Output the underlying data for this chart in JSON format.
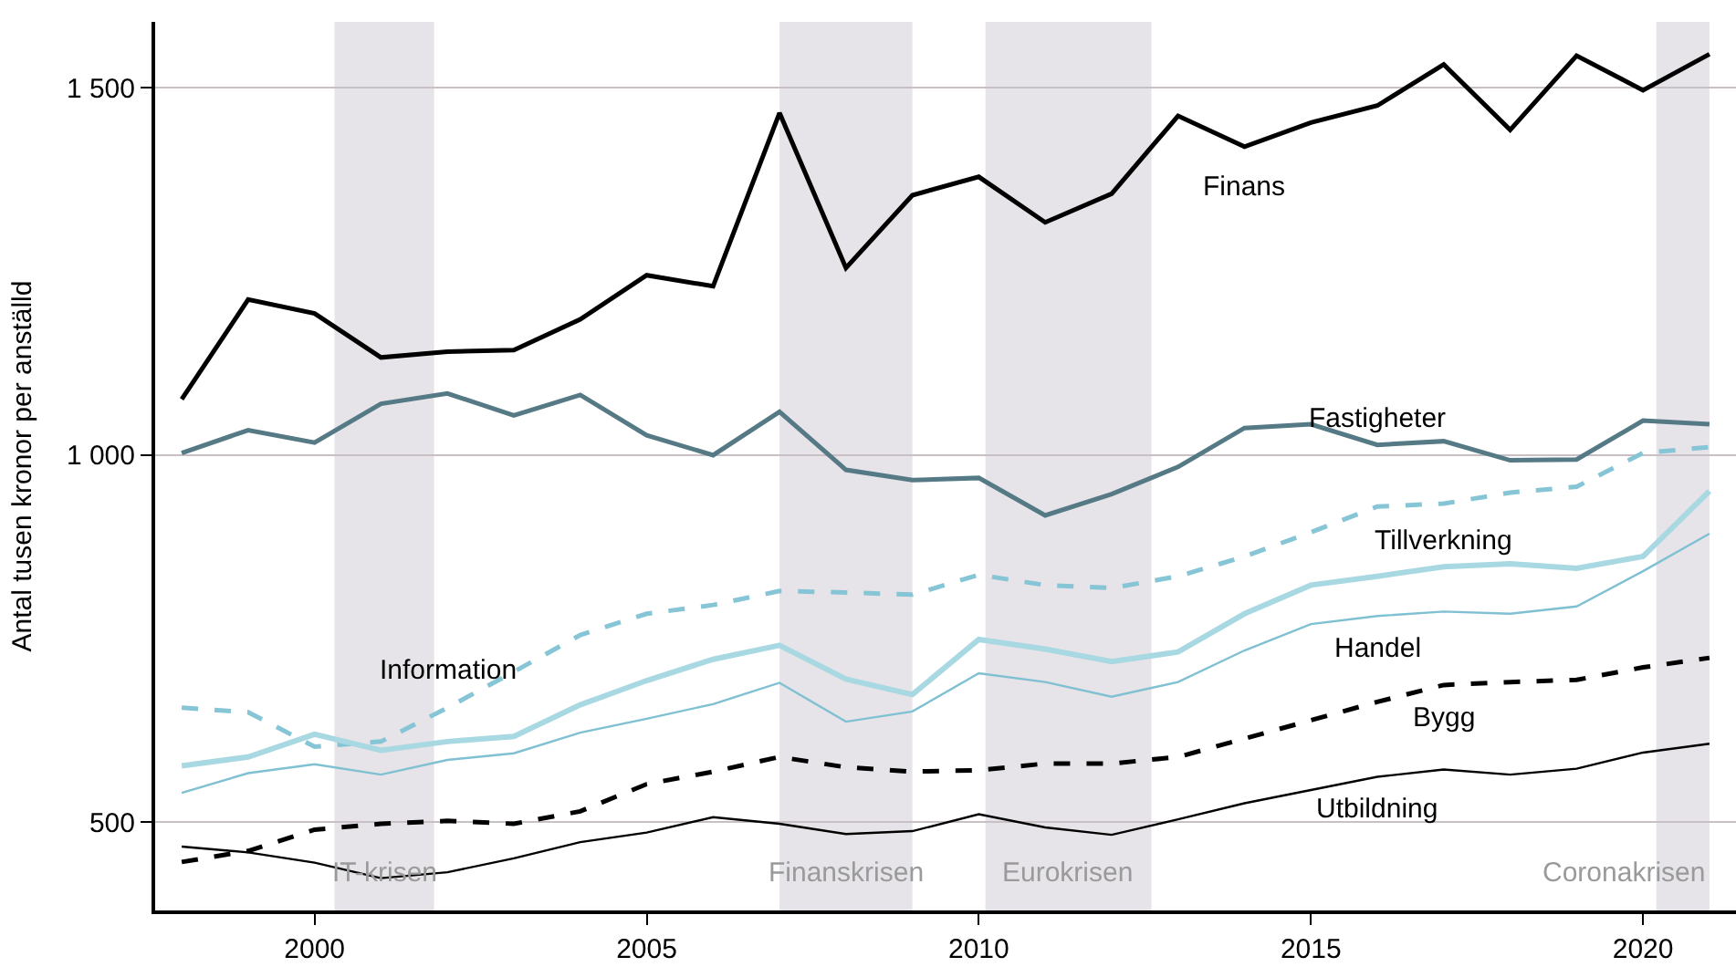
{
  "chart_data": {
    "type": "line",
    "ylabel": "Antal tusen kronor per anställd",
    "x": [
      1998,
      1999,
      2000,
      2001,
      2002,
      2003,
      2004,
      2005,
      2006,
      2007,
      2008,
      2009,
      2010,
      2011,
      2012,
      2013,
      2014,
      2015,
      2016,
      2017,
      2018,
      2019,
      2020,
      2021
    ],
    "xlim": [
      1997.6,
      2021.4
    ],
    "xticks": [
      2000,
      2005,
      2010,
      2015,
      2020
    ],
    "ylim": [
      380,
      1590
    ],
    "yticks": [
      {
        "value": 500,
        "label": "500"
      },
      {
        "value": 1000,
        "label": "1 000"
      },
      {
        "value": 1500,
        "label": "1 500"
      }
    ],
    "grid": "y",
    "legend": false,
    "marker": "none",
    "series": [
      {
        "name": "Finans",
        "color": "#000000",
        "line_style": "solid",
        "values": [
          1076,
          1212,
          1193,
          1133,
          1141,
          1143,
          1185,
          1245,
          1230,
          1466,
          1255,
          1354,
          1379,
          1317,
          1356,
          1462,
          1420,
          1453,
          1476,
          1532,
          1443,
          1544,
          1497,
          1546
        ]
      },
      {
        "name": "Fastigheter",
        "color": "#557a85",
        "line_style": "solid",
        "values": [
          1003,
          1034,
          1017,
          1070,
          1084,
          1054,
          1082,
          1027,
          1000,
          1059,
          980,
          966,
          969,
          918,
          947,
          984,
          1037,
          1042,
          1014,
          1019,
          993,
          994,
          1047,
          1042
        ]
      },
      {
        "name": "Information",
        "color": "#86c5d5",
        "line_style": "dashed",
        "values": [
          656,
          650,
          603,
          610,
          656,
          705,
          755,
          784,
          796,
          815,
          813,
          810,
          837,
          823,
          819,
          835,
          862,
          895,
          930,
          934,
          949,
          957,
          1003,
          1011
        ]
      },
      {
        "name": "Tillverkning",
        "color": "#a8d8e2",
        "line_style": "solid",
        "values": [
          577,
          589,
          620,
          598,
          610,
          617,
          660,
          693,
          722,
          741,
          695,
          674,
          749,
          736,
          719,
          732,
          784,
          823,
          835,
          848,
          852,
          846,
          862,
          951
        ]
      },
      {
        "name": "Handel",
        "color": "#7fc0d2",
        "line_style": "solid",
        "values": [
          540,
          567,
          579,
          565,
          585,
          594,
          622,
          641,
          661,
          690,
          637,
          651,
          703,
          691,
          671,
          691,
          734,
          770,
          781,
          787,
          784,
          794,
          842,
          893
        ]
      },
      {
        "name": "Bygg",
        "color": "#000000",
        "line_style": "dashed",
        "values": [
          446,
          461,
          490,
          498,
          502,
          498,
          515,
          552,
          569,
          589,
          575,
          569,
          571,
          580,
          580,
          589,
          614,
          639,
          664,
          687,
          691,
          694,
          711,
          724
        ]
      },
      {
        "name": "Utbildning",
        "color": "#000000",
        "line_style": "solid",
        "values": [
          467,
          459,
          445,
          424,
          432,
          451,
          473,
          486,
          507,
          498,
          484,
          488,
          511,
          493,
          483,
          504,
          526,
          544,
          562,
          572,
          565,
          573,
          595,
          607
        ]
      }
    ],
    "bands": [
      {
        "axis": "x",
        "from": 2000.3,
        "to": 2001.8,
        "label": "IT-krisen",
        "color": "#e6e4e8"
      },
      {
        "axis": "x",
        "from": 2007,
        "to": 2009,
        "label": "Finanskrisen",
        "color": "#e6e4e8"
      },
      {
        "axis": "x",
        "from": 2010.1,
        "to": 2012.6,
        "label": "Eurokrisen",
        "color": "#e6e4e8"
      },
      {
        "axis": "x",
        "from": 2020.2,
        "to": 2021,
        "label": "Coronakrisen",
        "color": "#e6e4e8"
      }
    ]
  }
}
